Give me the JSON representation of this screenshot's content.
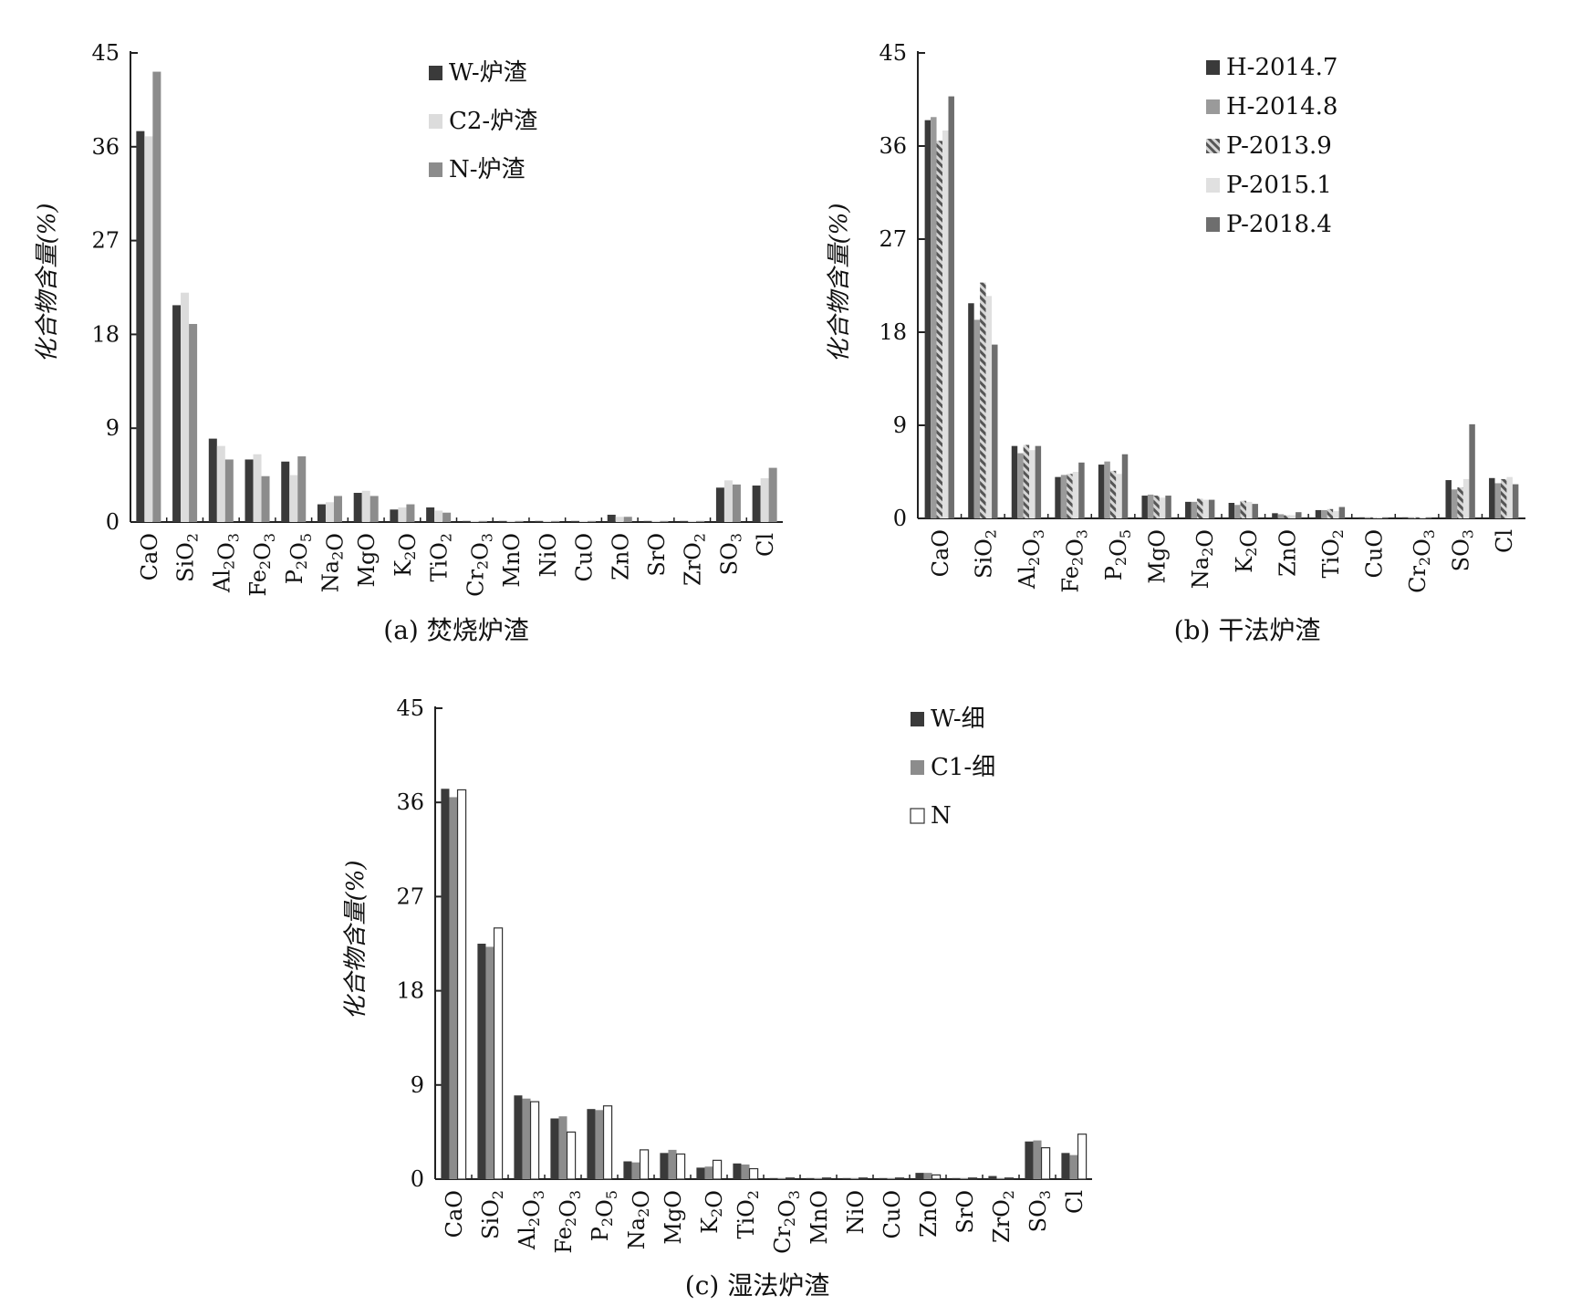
{
  "chart_data": [
    {
      "type": "bar",
      "title": "(a) 焚烧炉渣",
      "ylabel": "化合物含量(%)",
      "ylim": [
        0,
        45
      ],
      "yticks": [
        0,
        9,
        18,
        27,
        36,
        45
      ],
      "categories": [
        "CaO",
        "SiO2",
        "Al2O3",
        "Fe2O3",
        "P2O5",
        "Na2O",
        "MgO",
        "K2O",
        "TiO2",
        "Cr2O3",
        "MnO",
        "NiO",
        "CuO",
        "ZnO",
        "SrO",
        "ZrO2",
        "SO3",
        "Cl"
      ],
      "category_labels": [
        [
          [
            "CaO",
            ""
          ]
        ],
        [
          [
            "SiO",
            ""
          ],
          [
            "2",
            "sub"
          ]
        ],
        [
          [
            "Al",
            ""
          ],
          [
            "2",
            "sub"
          ],
          [
            "O",
            ""
          ],
          [
            "3",
            "sub"
          ]
        ],
        [
          [
            "Fe",
            ""
          ],
          [
            "2",
            "sub"
          ],
          [
            "O",
            ""
          ],
          [
            "3",
            "sub"
          ]
        ],
        [
          [
            "P",
            ""
          ],
          [
            "2",
            "sub"
          ],
          [
            "O",
            ""
          ],
          [
            "5",
            "sub"
          ]
        ],
        [
          [
            "Na",
            ""
          ],
          [
            "2",
            "sub"
          ],
          [
            "O",
            ""
          ]
        ],
        [
          [
            "MgO",
            ""
          ]
        ],
        [
          [
            "K",
            ""
          ],
          [
            "2",
            "sub"
          ],
          [
            "O",
            ""
          ]
        ],
        [
          [
            "TiO",
            ""
          ],
          [
            "2",
            "sub"
          ]
        ],
        [
          [
            "Cr",
            ""
          ],
          [
            "2",
            "sub"
          ],
          [
            "O",
            ""
          ],
          [
            "3",
            "sub"
          ]
        ],
        [
          [
            "MnO",
            ""
          ]
        ],
        [
          [
            "NiO",
            ""
          ]
        ],
        [
          [
            "CuO",
            ""
          ]
        ],
        [
          [
            "ZnO",
            ""
          ]
        ],
        [
          [
            "SrO",
            ""
          ]
        ],
        [
          [
            "ZrO",
            ""
          ],
          [
            "2",
            "sub"
          ]
        ],
        [
          [
            "SO",
            ""
          ],
          [
            "3",
            "sub"
          ]
        ],
        [
          [
            "Cl",
            ""
          ]
        ]
      ],
      "series": [
        {
          "name": "W-炉渣",
          "color": "#3a3a3a",
          "pattern": "solid",
          "values": [
            37.5,
            20.8,
            8.0,
            6.0,
            5.8,
            1.7,
            2.8,
            1.2,
            1.4,
            0.08,
            0.1,
            0.08,
            0.1,
            0.7,
            0.1,
            0.05,
            3.3,
            3.5
          ]
        },
        {
          "name": "C2-炉渣",
          "color": "#dcdcdc",
          "pattern": "solid",
          "values": [
            37.0,
            22.0,
            7.3,
            6.5,
            4.5,
            1.9,
            3.0,
            1.4,
            1.1,
            0.1,
            0.1,
            0.08,
            0.1,
            0.5,
            0.1,
            0.05,
            4.0,
            4.2
          ]
        },
        {
          "name": "N-炉渣",
          "color": "#8c8c8c",
          "pattern": "solid",
          "values": [
            43.2,
            19.0,
            6.0,
            4.4,
            6.3,
            2.5,
            2.5,
            1.7,
            0.9,
            0.1,
            0.1,
            0.08,
            0.1,
            0.5,
            0.1,
            0.05,
            3.6,
            5.2
          ]
        }
      ],
      "legend_position": "top-center"
    },
    {
      "type": "bar",
      "title": "(b) 干法炉渣",
      "ylabel": "化合物含量(%)",
      "ylim": [
        0,
        45
      ],
      "yticks": [
        0,
        9,
        18,
        27,
        36,
        45
      ],
      "categories": [
        "CaO",
        "SiO2",
        "Al2O3",
        "Fe2O3",
        "P2O5",
        "MgO",
        "Na2O",
        "K2O",
        "ZnO",
        "TiO2",
        "CuO",
        "Cr2O3",
        "SO3",
        "Cl"
      ],
      "category_labels": [
        [
          [
            "CaO",
            ""
          ]
        ],
        [
          [
            "SiO",
            ""
          ],
          [
            "2",
            "sub"
          ]
        ],
        [
          [
            "Al",
            ""
          ],
          [
            "2",
            "sub"
          ],
          [
            "O",
            ""
          ],
          [
            "3",
            "sub"
          ]
        ],
        [
          [
            "Fe",
            ""
          ],
          [
            "2",
            "sub"
          ],
          [
            "O",
            ""
          ],
          [
            "3",
            "sub"
          ]
        ],
        [
          [
            "P",
            ""
          ],
          [
            "2",
            "sub"
          ],
          [
            "O",
            ""
          ],
          [
            "5",
            "sub"
          ]
        ],
        [
          [
            "MgO",
            ""
          ]
        ],
        [
          [
            "Na",
            ""
          ],
          [
            "2",
            "sub"
          ],
          [
            "O",
            ""
          ]
        ],
        [
          [
            "K",
            ""
          ],
          [
            "2",
            "sub"
          ],
          [
            "O",
            ""
          ]
        ],
        [
          [
            "ZnO",
            ""
          ]
        ],
        [
          [
            "TiO",
            ""
          ],
          [
            "2",
            "sub"
          ]
        ],
        [
          [
            "CuO",
            ""
          ]
        ],
        [
          [
            "Cr",
            ""
          ],
          [
            "2",
            "sub"
          ],
          [
            "O",
            ""
          ],
          [
            "3",
            "sub"
          ]
        ],
        [
          [
            "SO",
            ""
          ],
          [
            "3",
            "sub"
          ]
        ],
        [
          [
            "Cl",
            ""
          ]
        ]
      ],
      "series": [
        {
          "name": "H-2014.7",
          "color": "#3a3a3a",
          "pattern": "solid",
          "values": [
            38.5,
            20.8,
            7.0,
            4.0,
            5.2,
            2.2,
            1.6,
            1.5,
            0.5,
            0.8,
            0.1,
            0.08,
            3.7,
            3.9
          ]
        },
        {
          "name": "H-2014.8",
          "color": "#9a9a9a",
          "pattern": "solid",
          "values": [
            38.8,
            19.2,
            6.3,
            4.2,
            5.5,
            2.3,
            1.6,
            1.3,
            0.4,
            0.8,
            0.1,
            0.08,
            2.8,
            3.4
          ]
        },
        {
          "name": "P-2013.9",
          "color": "#8a8a8a",
          "pattern": "hatch",
          "values": [
            36.5,
            22.8,
            7.1,
            4.3,
            4.6,
            2.2,
            1.9,
            1.7,
            0.3,
            0.9,
            0.1,
            0.08,
            3.0,
            3.8
          ]
        },
        {
          "name": "P-2015.1",
          "color": "#e0e0e0",
          "pattern": "solid",
          "values": [
            37.5,
            21.5,
            6.6,
            4.5,
            4.3,
            2.0,
            1.8,
            1.6,
            0.3,
            0.7,
            0.1,
            0.08,
            3.8,
            4.0
          ]
        },
        {
          "name": "P-2018.4",
          "color": "#6e6e6e",
          "pattern": "solid",
          "values": [
            40.8,
            16.8,
            7.0,
            5.4,
            6.2,
            2.2,
            1.8,
            1.4,
            0.6,
            1.1,
            0.1,
            0.08,
            9.1,
            3.3
          ]
        }
      ],
      "legend_position": "top-center"
    },
    {
      "type": "bar",
      "title": "(c) 湿法炉渣",
      "ylabel": "化合物含量(%)",
      "ylim": [
        0,
        45
      ],
      "yticks": [
        0,
        9,
        18,
        27,
        36,
        45
      ],
      "categories": [
        "CaO",
        "SiO2",
        "Al2O3",
        "Fe2O3",
        "P2O5",
        "Na2O",
        "MgO",
        "K2O",
        "TiO2",
        "Cr2O3",
        "MnO",
        "NiO",
        "CuO",
        "ZnO",
        "SrO",
        "ZrO2",
        "SO3",
        "Cl"
      ],
      "category_labels": [
        [
          [
            "CaO",
            ""
          ]
        ],
        [
          [
            "SiO",
            ""
          ],
          [
            "2",
            "sub"
          ]
        ],
        [
          [
            "Al",
            ""
          ],
          [
            "2",
            "sub"
          ],
          [
            "O",
            ""
          ],
          [
            "3",
            "sub"
          ]
        ],
        [
          [
            "Fe",
            ""
          ],
          [
            "2",
            "sub"
          ],
          [
            "O",
            ""
          ],
          [
            "3",
            "sub"
          ]
        ],
        [
          [
            "P",
            ""
          ],
          [
            "2",
            "sub"
          ],
          [
            "O",
            ""
          ],
          [
            "5",
            "sub"
          ]
        ],
        [
          [
            "Na",
            ""
          ],
          [
            "2",
            "sub"
          ],
          [
            "O",
            ""
          ]
        ],
        [
          [
            "MgO",
            ""
          ]
        ],
        [
          [
            "K",
            ""
          ],
          [
            "2",
            "sub"
          ],
          [
            "O",
            ""
          ]
        ],
        [
          [
            "TiO",
            ""
          ],
          [
            "2",
            "sub"
          ]
        ],
        [
          [
            "Cr",
            ""
          ],
          [
            "2",
            "sub"
          ],
          [
            "O",
            ""
          ],
          [
            "3",
            "sub"
          ]
        ],
        [
          [
            "MnO",
            ""
          ]
        ],
        [
          [
            "NiO",
            ""
          ]
        ],
        [
          [
            "CuO",
            ""
          ]
        ],
        [
          [
            "ZnO",
            ""
          ]
        ],
        [
          [
            "SrO",
            ""
          ]
        ],
        [
          [
            "ZrO",
            ""
          ],
          [
            "2",
            "sub"
          ]
        ],
        [
          [
            "SO",
            ""
          ],
          [
            "3",
            "sub"
          ]
        ],
        [
          [
            "Cl",
            ""
          ]
        ]
      ],
      "series": [
        {
          "name": "W-细",
          "color": "#3a3a3a",
          "pattern": "solid",
          "values": [
            37.3,
            22.5,
            8.0,
            5.8,
            6.7,
            1.7,
            2.5,
            1.1,
            1.5,
            0.08,
            0.1,
            0.1,
            0.1,
            0.6,
            0.1,
            0.3,
            3.6,
            2.5
          ]
        },
        {
          "name": "C1-细",
          "color": "#8c8c8c",
          "pattern": "solid",
          "values": [
            36.5,
            22.2,
            7.7,
            6.0,
            6.6,
            1.6,
            2.8,
            1.2,
            1.4,
            0.08,
            0.1,
            0.1,
            0.1,
            0.6,
            0.1,
            0.1,
            3.7,
            2.3
          ]
        },
        {
          "name": "N",
          "color": "#ffffff",
          "pattern": "outline",
          "values": [
            37.2,
            24.0,
            7.4,
            4.5,
            7.0,
            2.8,
            2.4,
            1.8,
            1.0,
            0.1,
            0.1,
            0.1,
            0.1,
            0.4,
            0.1,
            0.08,
            3.0,
            4.3
          ]
        }
      ],
      "legend_position": "top-right"
    }
  ]
}
